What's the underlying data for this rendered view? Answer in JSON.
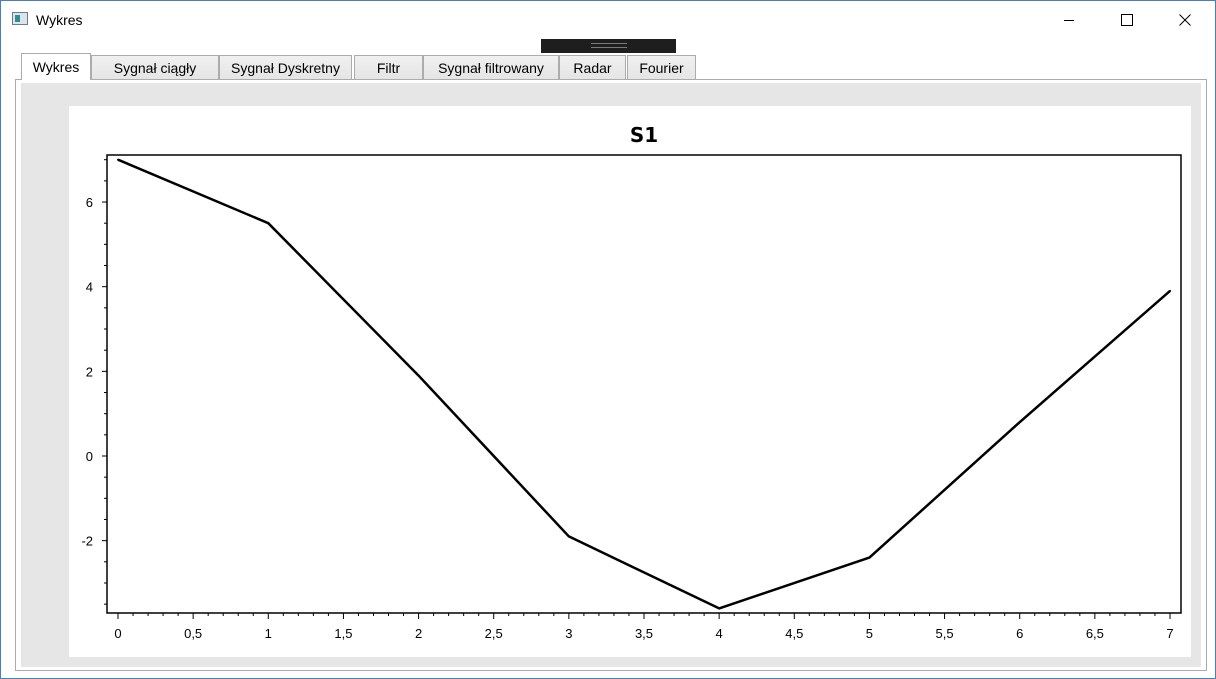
{
  "window": {
    "title": "Wykres",
    "icon": "app-window-icon",
    "controls": {
      "minimize": "minimize-icon",
      "maximize": "maximize-icon",
      "close": "close-icon"
    }
  },
  "tabs": [
    {
      "label": "Wykres",
      "active": true
    },
    {
      "label": "Sygnał ciągły",
      "active": false
    },
    {
      "label": "Sygnał Dyskretny",
      "active": false
    },
    {
      "label": "Filtr",
      "active": false
    },
    {
      "label": "Sygnał filtrowany",
      "active": false
    },
    {
      "label": "Radar",
      "active": false
    },
    {
      "label": "Fourier",
      "active": false
    }
  ],
  "chart_data": {
    "type": "line",
    "title": "S1",
    "xlabel": "",
    "ylabel": "",
    "xlim": [
      0,
      7
    ],
    "ylim": [
      -3.6,
      7.1
    ],
    "grid": false,
    "x": [
      0,
      1,
      2,
      3,
      4,
      5,
      6,
      7
    ],
    "series": [
      {
        "values": [
          7,
          5.5,
          1.9,
          -1.9,
          -3.6,
          -2.4,
          0.8,
          3.9
        ],
        "color": "#000000"
      }
    ],
    "x_ticks": [
      "0",
      "0,5",
      "1",
      "1,5",
      "2",
      "2,5",
      "3",
      "3,5",
      "4",
      "4,5",
      "5",
      "5,5",
      "6",
      "6,5",
      "7"
    ],
    "y_ticks": [
      "6",
      "4",
      "2",
      "0",
      "-2"
    ]
  }
}
